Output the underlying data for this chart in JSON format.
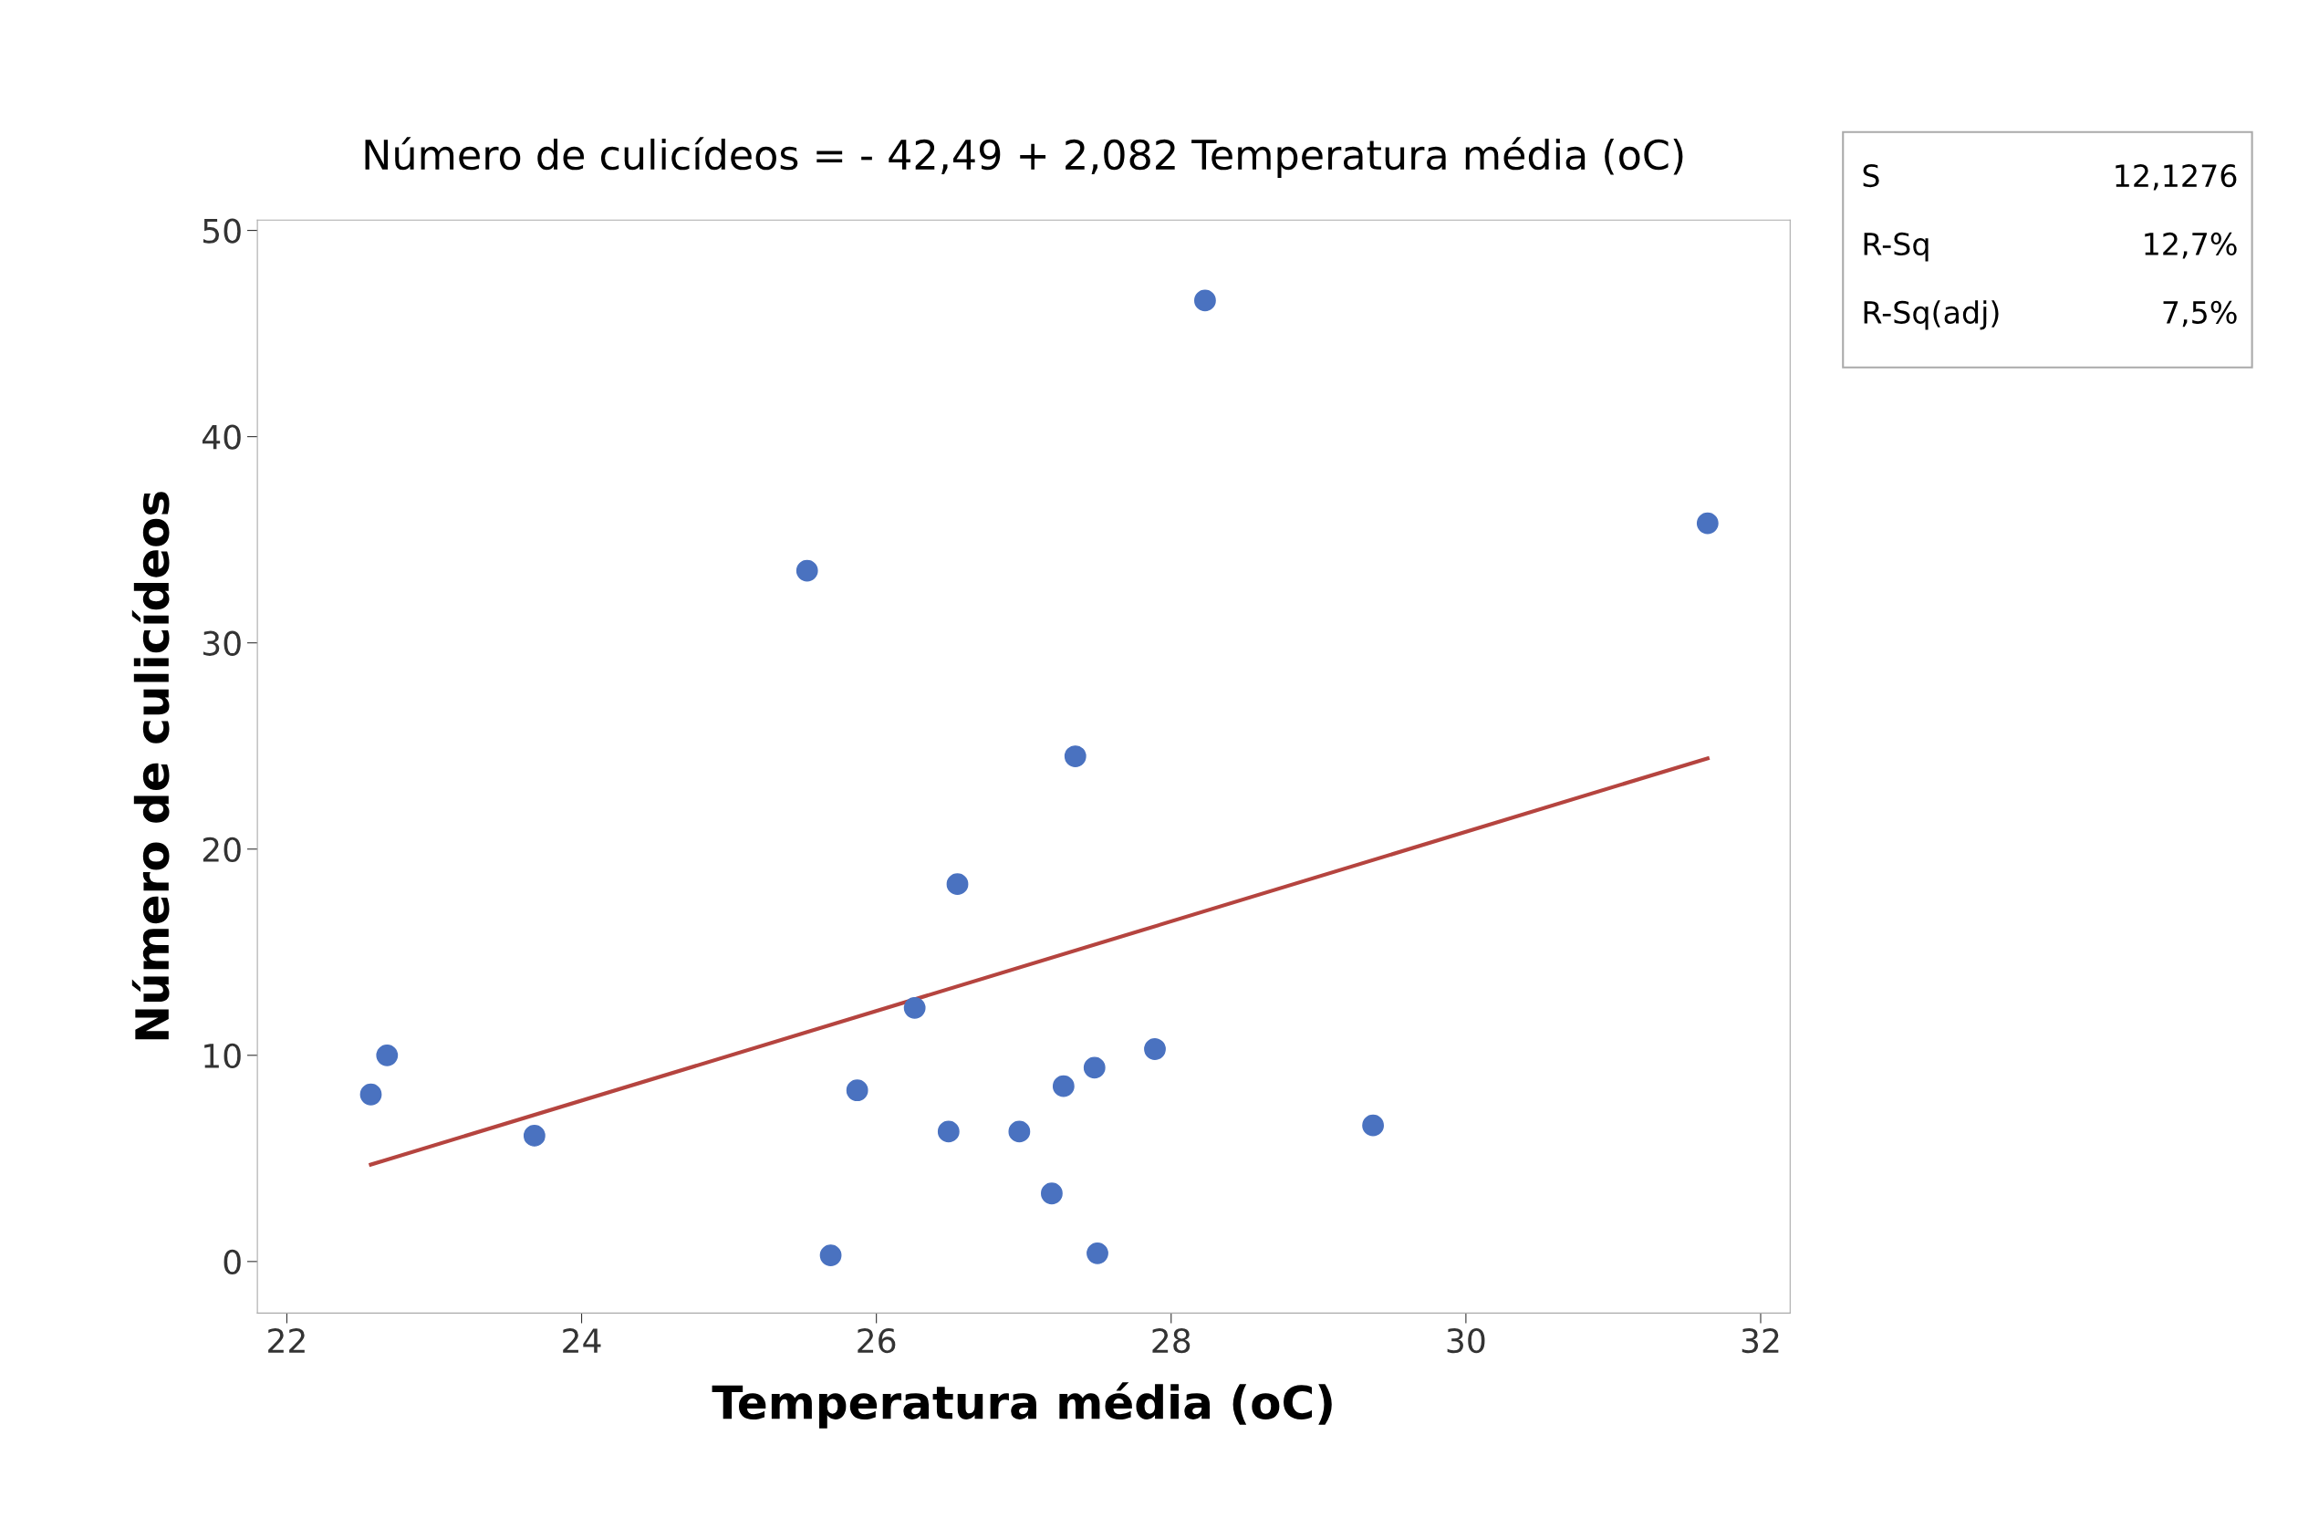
{
  "chart_data": {
    "type": "scatter",
    "title": "Número de culicídeos = - 42,49 + 2,082 Temperatura média (oC)",
    "xlabel": "Temperatura média (oC)",
    "ylabel": "Número de culicídeos",
    "xlim": [
      21.8,
      32.2
    ],
    "ylim": [
      -2.5,
      50.5
    ],
    "xticks": [
      22,
      24,
      26,
      28,
      30,
      32
    ],
    "yticks": [
      0,
      10,
      20,
      30,
      40,
      50
    ],
    "grid": false,
    "legend": false,
    "marker": "circle",
    "series": [
      {
        "color": "#4a72c0",
        "x": [
          22.57,
          22.68,
          23.68,
          25.53,
          25.69,
          25.87,
          26.26,
          26.49,
          26.55,
          26.97,
          27.19,
          27.27,
          27.35,
          27.48,
          27.5,
          27.89,
          28.23,
          29.37,
          31.64
        ],
        "values": [
          8.1,
          10.0,
          6.1,
          33.5,
          0.3,
          8.3,
          12.3,
          6.3,
          18.3,
          6.3,
          3.3,
          8.5,
          24.5,
          9.4,
          0.4,
          10.3,
          46.6,
          6.6,
          35.8
        ]
      },
      {
        "type": "line",
        "color": "#b5443f",
        "line_style": "solid",
        "marker": "none",
        "x": [
          22.57,
          31.64
        ],
        "values": [
          4.7,
          24.4
        ]
      }
    ],
    "annotations": [
      "S 12,1276",
      "R-Sq 12,7%",
      "R-Sq(adj) 7,5%"
    ]
  }
}
